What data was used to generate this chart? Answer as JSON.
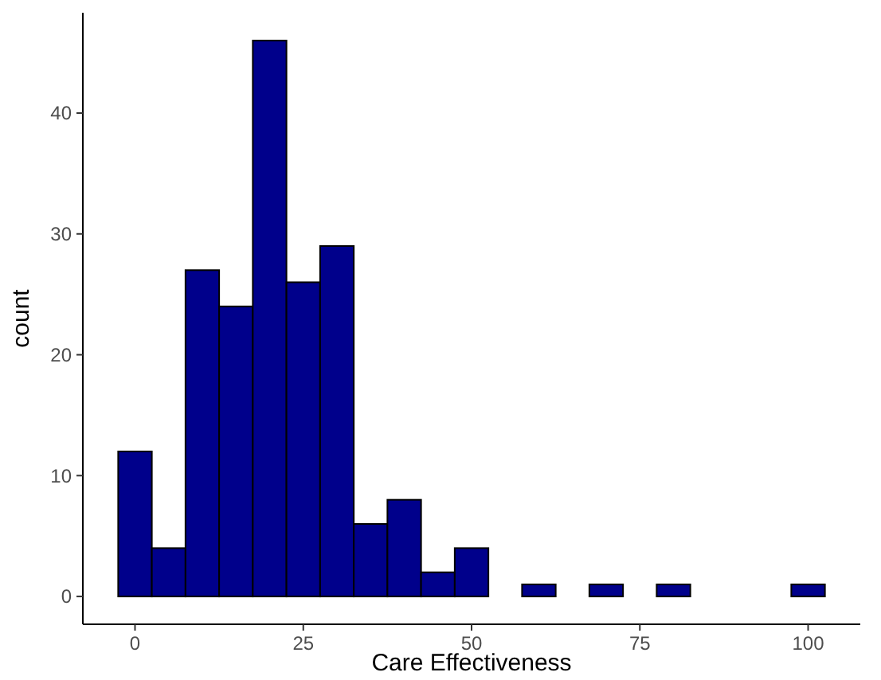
{
  "chart_data": {
    "type": "histogram",
    "xlabel": "Care Effectiveness",
    "ylabel": "count",
    "bins": [
      -2.5,
      2.5,
      7.5,
      12.5,
      17.5,
      22.5,
      27.5,
      32.5,
      37.5,
      42.5,
      47.5,
      52.5,
      57.5,
      62.5,
      67.5,
      72.5,
      77.5,
      82.5,
      87.5,
      92.5,
      97.5,
      102.5
    ],
    "values": [
      12,
      4,
      27,
      24,
      46,
      26,
      29,
      6,
      8,
      2,
      4,
      0,
      1,
      0,
      1,
      0,
      1,
      0,
      0,
      0,
      1
    ],
    "color": "#00008b",
    "xlim": [
      -7.75,
      107.75
    ],
    "ylim": [
      -2.3,
      48.3
    ],
    "xticks": [
      0,
      25,
      50,
      75,
      100
    ],
    "yticks": [
      0,
      10,
      20,
      30,
      40
    ],
    "grid": false
  }
}
